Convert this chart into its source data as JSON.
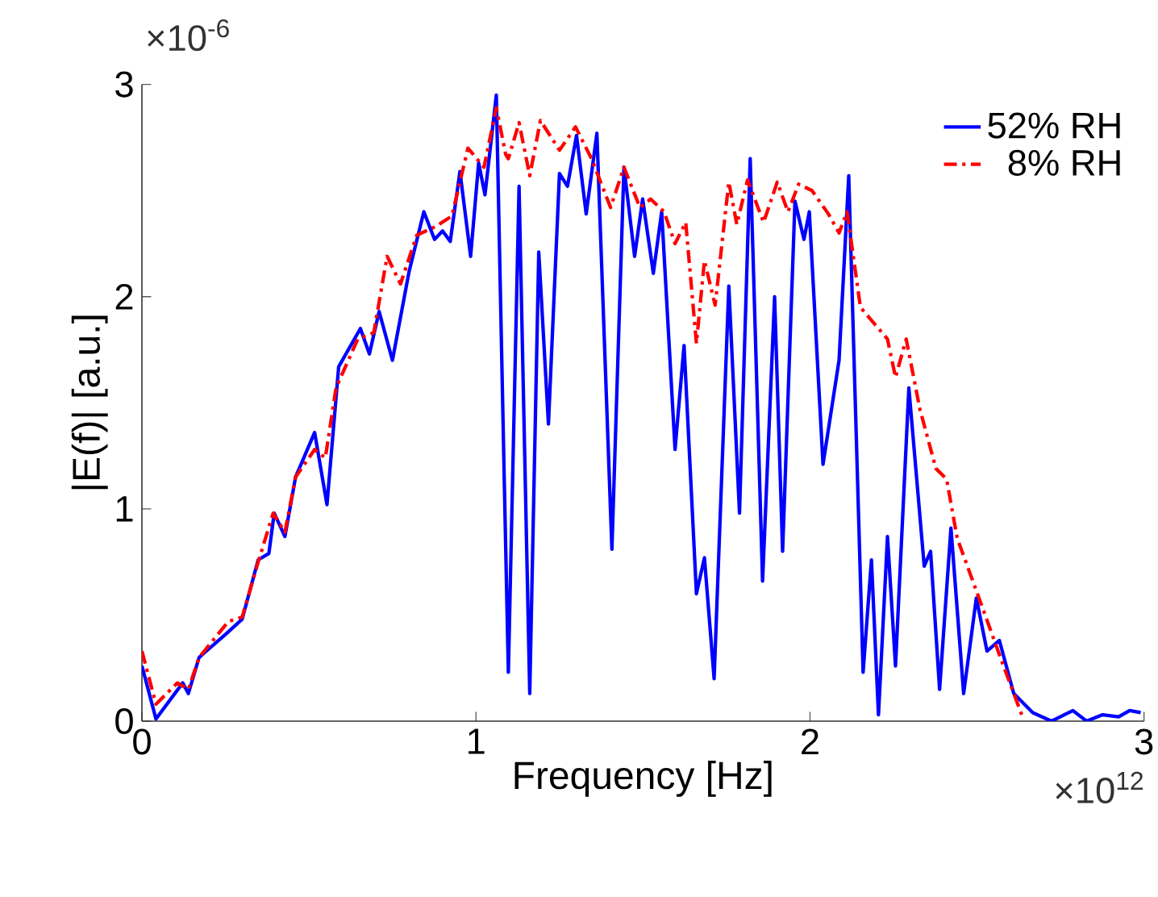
{
  "chart_data": {
    "type": "line",
    "xlabel": "Frequency [Hz]",
    "ylabel": "|E(f)| [a.u.]",
    "annotations": [
      "×10$^{-6}$",
      "×10$^{12}$"
    ],
    "xlim": [
      0,
      3
    ],
    "ylim": [
      0,
      3
    ],
    "xticks": [
      0,
      1,
      2,
      3
    ],
    "yticks": [
      0,
      1,
      2,
      3
    ],
    "legend": "top right",
    "grid": false,
    "marker": "none",
    "series": [
      {
        "name": "52% RH",
        "color": "#0000ff",
        "line_style": "solid",
        "x": [
          0,
          0.042,
          0.122,
          0.139,
          0.171,
          0.251,
          0.3,
          0.348,
          0.38,
          0.396,
          0.428,
          0.46,
          0.517,
          0.554,
          0.589,
          0.654,
          0.681,
          0.71,
          0.75,
          0.8,
          0.844,
          0.876,
          0.9,
          0.923,
          0.952,
          0.984,
          1.008,
          1.027,
          1.061,
          1.084,
          1.097,
          1.129,
          1.161,
          1.188,
          1.217,
          1.25,
          1.274,
          1.301,
          1.33,
          1.362,
          1.407,
          1.443,
          1.475,
          1.499,
          1.531,
          1.556,
          1.596,
          1.623,
          1.66,
          1.684,
          1.713,
          1.757,
          1.789,
          1.821,
          1.858,
          1.894,
          1.918,
          1.955,
          1.982,
          1.998,
          2.039,
          2.087,
          2.116,
          2.159,
          2.184,
          2.205,
          2.232,
          2.256,
          2.296,
          2.342,
          2.361,
          2.388,
          2.422,
          2.46,
          2.498,
          2.53,
          2.567,
          2.61,
          2.667,
          2.723,
          2.787,
          2.828,
          2.876,
          2.924,
          2.957,
          2.99
        ],
        "values": [
          0.26,
          0.01,
          0.18,
          0.13,
          0.3,
          0.41,
          0.48,
          0.76,
          0.79,
          0.98,
          0.87,
          1.15,
          1.36,
          1.02,
          1.67,
          1.85,
          1.73,
          1.93,
          1.7,
          2.12,
          2.4,
          2.27,
          2.31,
          2.26,
          2.59,
          2.19,
          2.63,
          2.48,
          2.95,
          1.19,
          0.23,
          2.52,
          0.13,
          2.21,
          1.4,
          2.58,
          2.52,
          2.76,
          2.39,
          2.77,
          0.81,
          2.61,
          2.19,
          2.46,
          2.11,
          2.4,
          1.28,
          1.77,
          0.6,
          0.77,
          0.2,
          2.05,
          0.98,
          2.65,
          0.66,
          2.0,
          0.8,
          2.45,
          2.27,
          2.4,
          1.21,
          1.7,
          2.57,
          0.23,
          0.76,
          0.03,
          0.87,
          0.26,
          1.57,
          0.73,
          0.8,
          0.15,
          0.91,
          0.13,
          0.58,
          0.33,
          0.38,
          0.13,
          0.04,
          0.0,
          0.05,
          0.0,
          0.03,
          0.02,
          0.05,
          0.04
        ]
      },
      {
        "name": "8% RH",
        "color": "#ff0000",
        "line_style": "dashed",
        "x": [
          0,
          0.042,
          0.106,
          0.139,
          0.171,
          0.259,
          0.3,
          0.348,
          0.393,
          0.428,
          0.46,
          0.517,
          0.549,
          0.581,
          0.646,
          0.694,
          0.734,
          0.774,
          0.823,
          0.879,
          0.928,
          0.976,
          1.024,
          1.061,
          1.089,
          1.097,
          1.129,
          1.161,
          1.193,
          1.25,
          1.298,
          1.346,
          1.403,
          1.443,
          1.491,
          1.523,
          1.563,
          1.596,
          1.628,
          1.66,
          1.684,
          1.716,
          1.757,
          1.781,
          1.813,
          1.861,
          1.902,
          1.934,
          1.966,
          2.006,
          2.055,
          2.087,
          2.111,
          2.151,
          2.232,
          2.256,
          2.288,
          2.329,
          2.377,
          2.409,
          2.441,
          2.506,
          2.57,
          2.634
        ],
        "values": [
          0.33,
          0.08,
          0.18,
          0.15,
          0.3,
          0.47,
          0.49,
          0.75,
          0.98,
          0.89,
          1.15,
          1.28,
          1.24,
          1.57,
          1.8,
          1.83,
          2.19,
          2.06,
          2.29,
          2.33,
          2.38,
          2.7,
          2.61,
          2.89,
          2.67,
          2.65,
          2.82,
          2.57,
          2.83,
          2.69,
          2.8,
          2.65,
          2.42,
          2.61,
          2.42,
          2.46,
          2.4,
          2.25,
          2.35,
          1.78,
          2.17,
          1.96,
          2.54,
          2.34,
          2.55,
          2.35,
          2.54,
          2.4,
          2.53,
          2.5,
          2.39,
          2.3,
          2.4,
          1.95,
          1.8,
          1.62,
          1.8,
          1.47,
          1.19,
          1.14,
          0.86,
          0.58,
          0.3,
          0.03
        ]
      }
    ]
  }
}
